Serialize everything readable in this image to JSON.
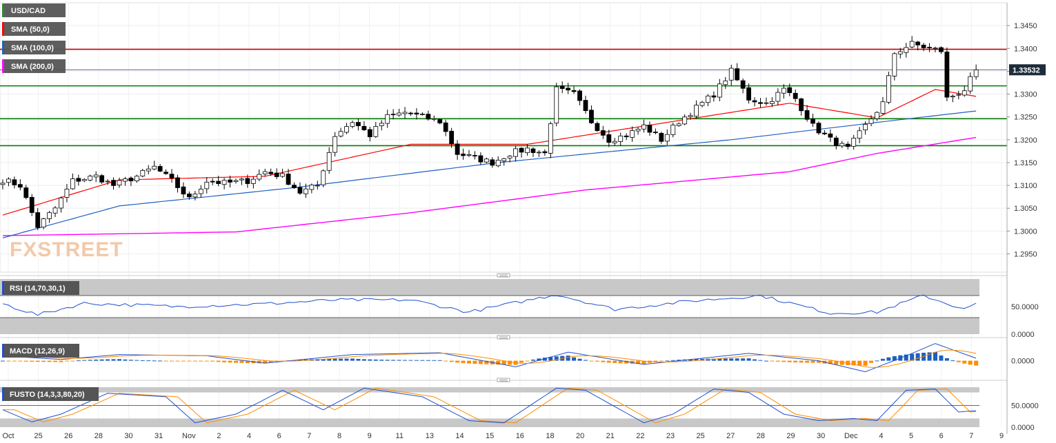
{
  "chart_data": {
    "type": "candlestick",
    "symbol": "USD/CAD",
    "watermark": "FXSTREET",
    "current_price": "1.33532",
    "colors": {
      "up": "#ffffff",
      "down": "#000000",
      "sma50": "#ff0000",
      "sma100": "#1f5fbf",
      "sma200": "#ff00ff",
      "support_lines": "#007a00",
      "resistance_line": "#d00000",
      "rsi": "#1f4fd0",
      "macd_line": "#1f4fd0",
      "signal_line": "#ff8c00",
      "macd_hist_pos": "#1f5fbf",
      "macd_hist_neg": "#ff8c00",
      "fusto_k": "#1f4fd0",
      "fusto_d": "#ff8c00"
    },
    "price_axis": {
      "ylim": [
        1.291,
        1.35
      ],
      "ticks": [
        "1.3450",
        "1.3400",
        "1.3350",
        "1.3300",
        "1.3250",
        "1.3200",
        "1.3150",
        "1.3100",
        "1.3050",
        "1.3000",
        "1.2950"
      ]
    },
    "x_labels": [
      "Oct",
      "25",
      "26",
      "28",
      "30",
      "31",
      "Nov",
      "2",
      "4",
      "6",
      "7",
      "8",
      "9",
      "11",
      "13",
      "14",
      "15",
      "16",
      "18",
      "20",
      "21",
      "22",
      "23",
      "25",
      "27",
      "28",
      "29",
      "30",
      "Dec",
      "4",
      "5",
      "6",
      "7",
      "9"
    ],
    "legends": {
      "main": [
        "USD/CAD",
        "SMA (50,0)",
        "SMA (100,0)",
        "SMA (200,0)"
      ],
      "rsi": "RSI (14,70,30,1)",
      "macd": "MACD (12,26,9)",
      "fusto": "FUSTO (14,3,3,80,20)"
    },
    "horizontal_levels": {
      "resistance": [
        1.3398
      ],
      "support": [
        1.3318,
        1.3246,
        1.3187
      ],
      "current": 1.33532
    },
    "price_anchors": [
      [
        0,
        1.3112
      ],
      [
        3,
        1.31
      ],
      [
        6,
        1.301
      ],
      [
        9,
        1.305
      ],
      [
        12,
        1.311
      ],
      [
        16,
        1.312
      ],
      [
        19,
        1.31
      ],
      [
        23,
        1.312
      ],
      [
        26,
        1.314
      ],
      [
        29,
        1.311
      ],
      [
        32,
        1.307
      ],
      [
        35,
        1.311
      ],
      [
        38,
        1.3105
      ],
      [
        42,
        1.311
      ],
      [
        45,
        1.313
      ],
      [
        48,
        1.312
      ],
      [
        51,
        1.3085
      ],
      [
        54,
        1.31
      ],
      [
        57,
        1.321
      ],
      [
        60,
        1.324
      ],
      [
        63,
        1.321
      ],
      [
        66,
        1.325
      ],
      [
        69,
        1.326
      ],
      [
        72,
        1.325
      ],
      [
        75,
        1.324
      ],
      [
        78,
        1.317
      ],
      [
        81,
        1.316
      ],
      [
        84,
        1.315
      ],
      [
        87,
        1.317
      ],
      [
        90,
        1.318
      ],
      [
        93,
        1.317
      ],
      [
        95,
        1.331
      ],
      [
        98,
        1.33
      ],
      [
        101,
        1.324
      ],
      [
        104,
        1.32
      ],
      [
        107,
        1.321
      ],
      [
        110,
        1.323
      ],
      [
        113,
        1.32
      ],
      [
        116,
        1.324
      ],
      [
        119,
        1.327
      ],
      [
        122,
        1.33
      ],
      [
        125,
        1.335
      ],
      [
        128,
        1.329
      ],
      [
        131,
        1.328
      ],
      [
        134,
        1.331
      ],
      [
        136,
        1.329
      ],
      [
        139,
        1.323
      ],
      [
        142,
        1.32
      ],
      [
        145,
        1.318
      ],
      [
        148,
        1.323
      ],
      [
        151,
        1.328
      ],
      [
        153,
        1.339
      ],
      [
        156,
        1.341
      ],
      [
        159,
        1.34
      ],
      [
        161,
        1.3395
      ],
      [
        162,
        1.329
      ],
      [
        165,
        1.331
      ],
      [
        167,
        1.3353
      ]
    ],
    "sma50_anchors": [
      [
        0,
        1.3035
      ],
      [
        20,
        1.3112
      ],
      [
        45,
        1.312
      ],
      [
        70,
        1.319
      ],
      [
        90,
        1.319
      ],
      [
        120,
        1.325
      ],
      [
        135,
        1.328
      ],
      [
        150,
        1.3248
      ],
      [
        160,
        1.331
      ],
      [
        167,
        1.3295
      ]
    ],
    "sma100_anchors": [
      [
        0,
        1.2985
      ],
      [
        20,
        1.3055
      ],
      [
        50,
        1.3095
      ],
      [
        85,
        1.315
      ],
      [
        125,
        1.32
      ],
      [
        150,
        1.3238
      ],
      [
        167,
        1.3263
      ]
    ],
    "sma200_anchors": [
      [
        0,
        1.299
      ],
      [
        40,
        1.2998
      ],
      [
        70,
        1.304
      ],
      [
        100,
        1.309
      ],
      [
        135,
        1.313
      ],
      [
        150,
        1.317
      ],
      [
        167,
        1.3205
      ]
    ],
    "rsi": {
      "ylim": [
        0,
        100
      ],
      "ticks": [
        "50.0000",
        "0.0000"
      ],
      "overbought": 70,
      "oversold": 30,
      "anchors": [
        [
          0,
          55
        ],
        [
          6,
          35
        ],
        [
          14,
          56
        ],
        [
          30,
          50
        ],
        [
          45,
          55
        ],
        [
          57,
          62
        ],
        [
          70,
          62
        ],
        [
          80,
          40
        ],
        [
          95,
          72
        ],
        [
          105,
          45
        ],
        [
          118,
          60
        ],
        [
          130,
          70
        ],
        [
          142,
          38
        ],
        [
          150,
          40
        ],
        [
          158,
          70
        ],
        [
          165,
          45
        ],
        [
          167,
          55
        ]
      ]
    },
    "macd": {
      "ylim": [
        -0.0024,
        0.0032
      ],
      "ticks": [
        "0.0000"
      ],
      "anchors": [
        [
          0,
          0.0008
        ],
        [
          10,
          0.0002
        ],
        [
          20,
          0.001
        ],
        [
          35,
          0.0008
        ],
        [
          45,
          -0.0004
        ],
        [
          60,
          0.001
        ],
        [
          75,
          0.0013
        ],
        [
          88,
          -0.001
        ],
        [
          97,
          0.0014
        ],
        [
          110,
          -0.0006
        ],
        [
          128,
          0.0012
        ],
        [
          140,
          0.0
        ],
        [
          148,
          -0.0018
        ],
        [
          155,
          0.0008
        ],
        [
          160,
          0.0028
        ],
        [
          167,
          0.0004
        ]
      ]
    },
    "fusto": {
      "ylim": [
        0,
        100
      ],
      "ticks": [
        "50.0000",
        "0.0000"
      ],
      "upper": 80,
      "lower": 20,
      "anchors": [
        [
          0,
          40
        ],
        [
          5,
          12
        ],
        [
          10,
          30
        ],
        [
          18,
          78
        ],
        [
          28,
          70
        ],
        [
          33,
          10
        ],
        [
          40,
          30
        ],
        [
          48,
          85
        ],
        [
          55,
          40
        ],
        [
          62,
          90
        ],
        [
          72,
          70
        ],
        [
          80,
          15
        ],
        [
          86,
          10
        ],
        [
          95,
          90
        ],
        [
          100,
          85
        ],
        [
          110,
          10
        ],
        [
          115,
          30
        ],
        [
          122,
          88
        ],
        [
          128,
          80
        ],
        [
          134,
          30
        ],
        [
          140,
          15
        ],
        [
          146,
          20
        ],
        [
          150,
          15
        ],
        [
          155,
          85
        ],
        [
          160,
          88
        ],
        [
          164,
          35
        ],
        [
          167,
          38
        ]
      ]
    }
  }
}
